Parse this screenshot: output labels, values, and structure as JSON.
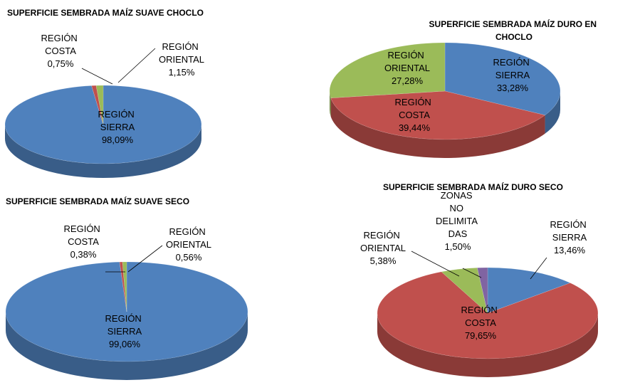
{
  "chart_data": [
    {
      "type": "pie",
      "title": "SUPERFICIE SEMBRADA MAÍZ SUAVE CHOCLO",
      "categories": [
        "REGIÓN SIERRA",
        "REGIÓN COSTA",
        "REGIÓN ORIENTAL"
      ],
      "values": [
        98.09,
        0.75,
        1.15
      ],
      "value_labels": [
        "98,09%",
        "0,75%",
        "1,15%"
      ],
      "colors": [
        "#4f81bd",
        "#c0504d",
        "#9bbb59"
      ]
    },
    {
      "type": "pie",
      "title": "SUPERFICIE SEMBRADA MAÍZ DURO EN CHOCLO",
      "categories": [
        "REGIÓN SIERRA",
        "REGIÓN COSTA",
        "REGIÓN ORIENTAL"
      ],
      "values": [
        33.28,
        39.44,
        27.28
      ],
      "value_labels": [
        "33,28%",
        "39,44%",
        "27,28%"
      ],
      "colors": [
        "#4f81bd",
        "#c0504d",
        "#9bbb59"
      ]
    },
    {
      "type": "pie",
      "title": "SUPERFICIE SEMBRADA MAÍZ SUAVE SECO",
      "categories": [
        "REGIÓN SIERRA",
        "REGIÓN COSTA",
        "REGIÓN ORIENTAL"
      ],
      "values": [
        99.06,
        0.38,
        0.56
      ],
      "value_labels": [
        "99,06%",
        "0,38%",
        "0,56%"
      ],
      "colors": [
        "#4f81bd",
        "#c0504d",
        "#9bbb59"
      ]
    },
    {
      "type": "pie",
      "title": "SUPERFICIE SEMBRADA  MAÍZ DURO SECO",
      "categories": [
        "REGIÓN SIERRA",
        "REGIÓN COSTA",
        "REGIÓN ORIENTAL",
        "ZONAS NO DELIMITADAS"
      ],
      "values": [
        13.46,
        79.65,
        5.38,
        1.5
      ],
      "value_labels": [
        "13,46%",
        "79,65%",
        "5,38%",
        "1,50%"
      ],
      "colors": [
        "#4f81bd",
        "#c0504d",
        "#9bbb59",
        "#8064a2"
      ]
    }
  ]
}
